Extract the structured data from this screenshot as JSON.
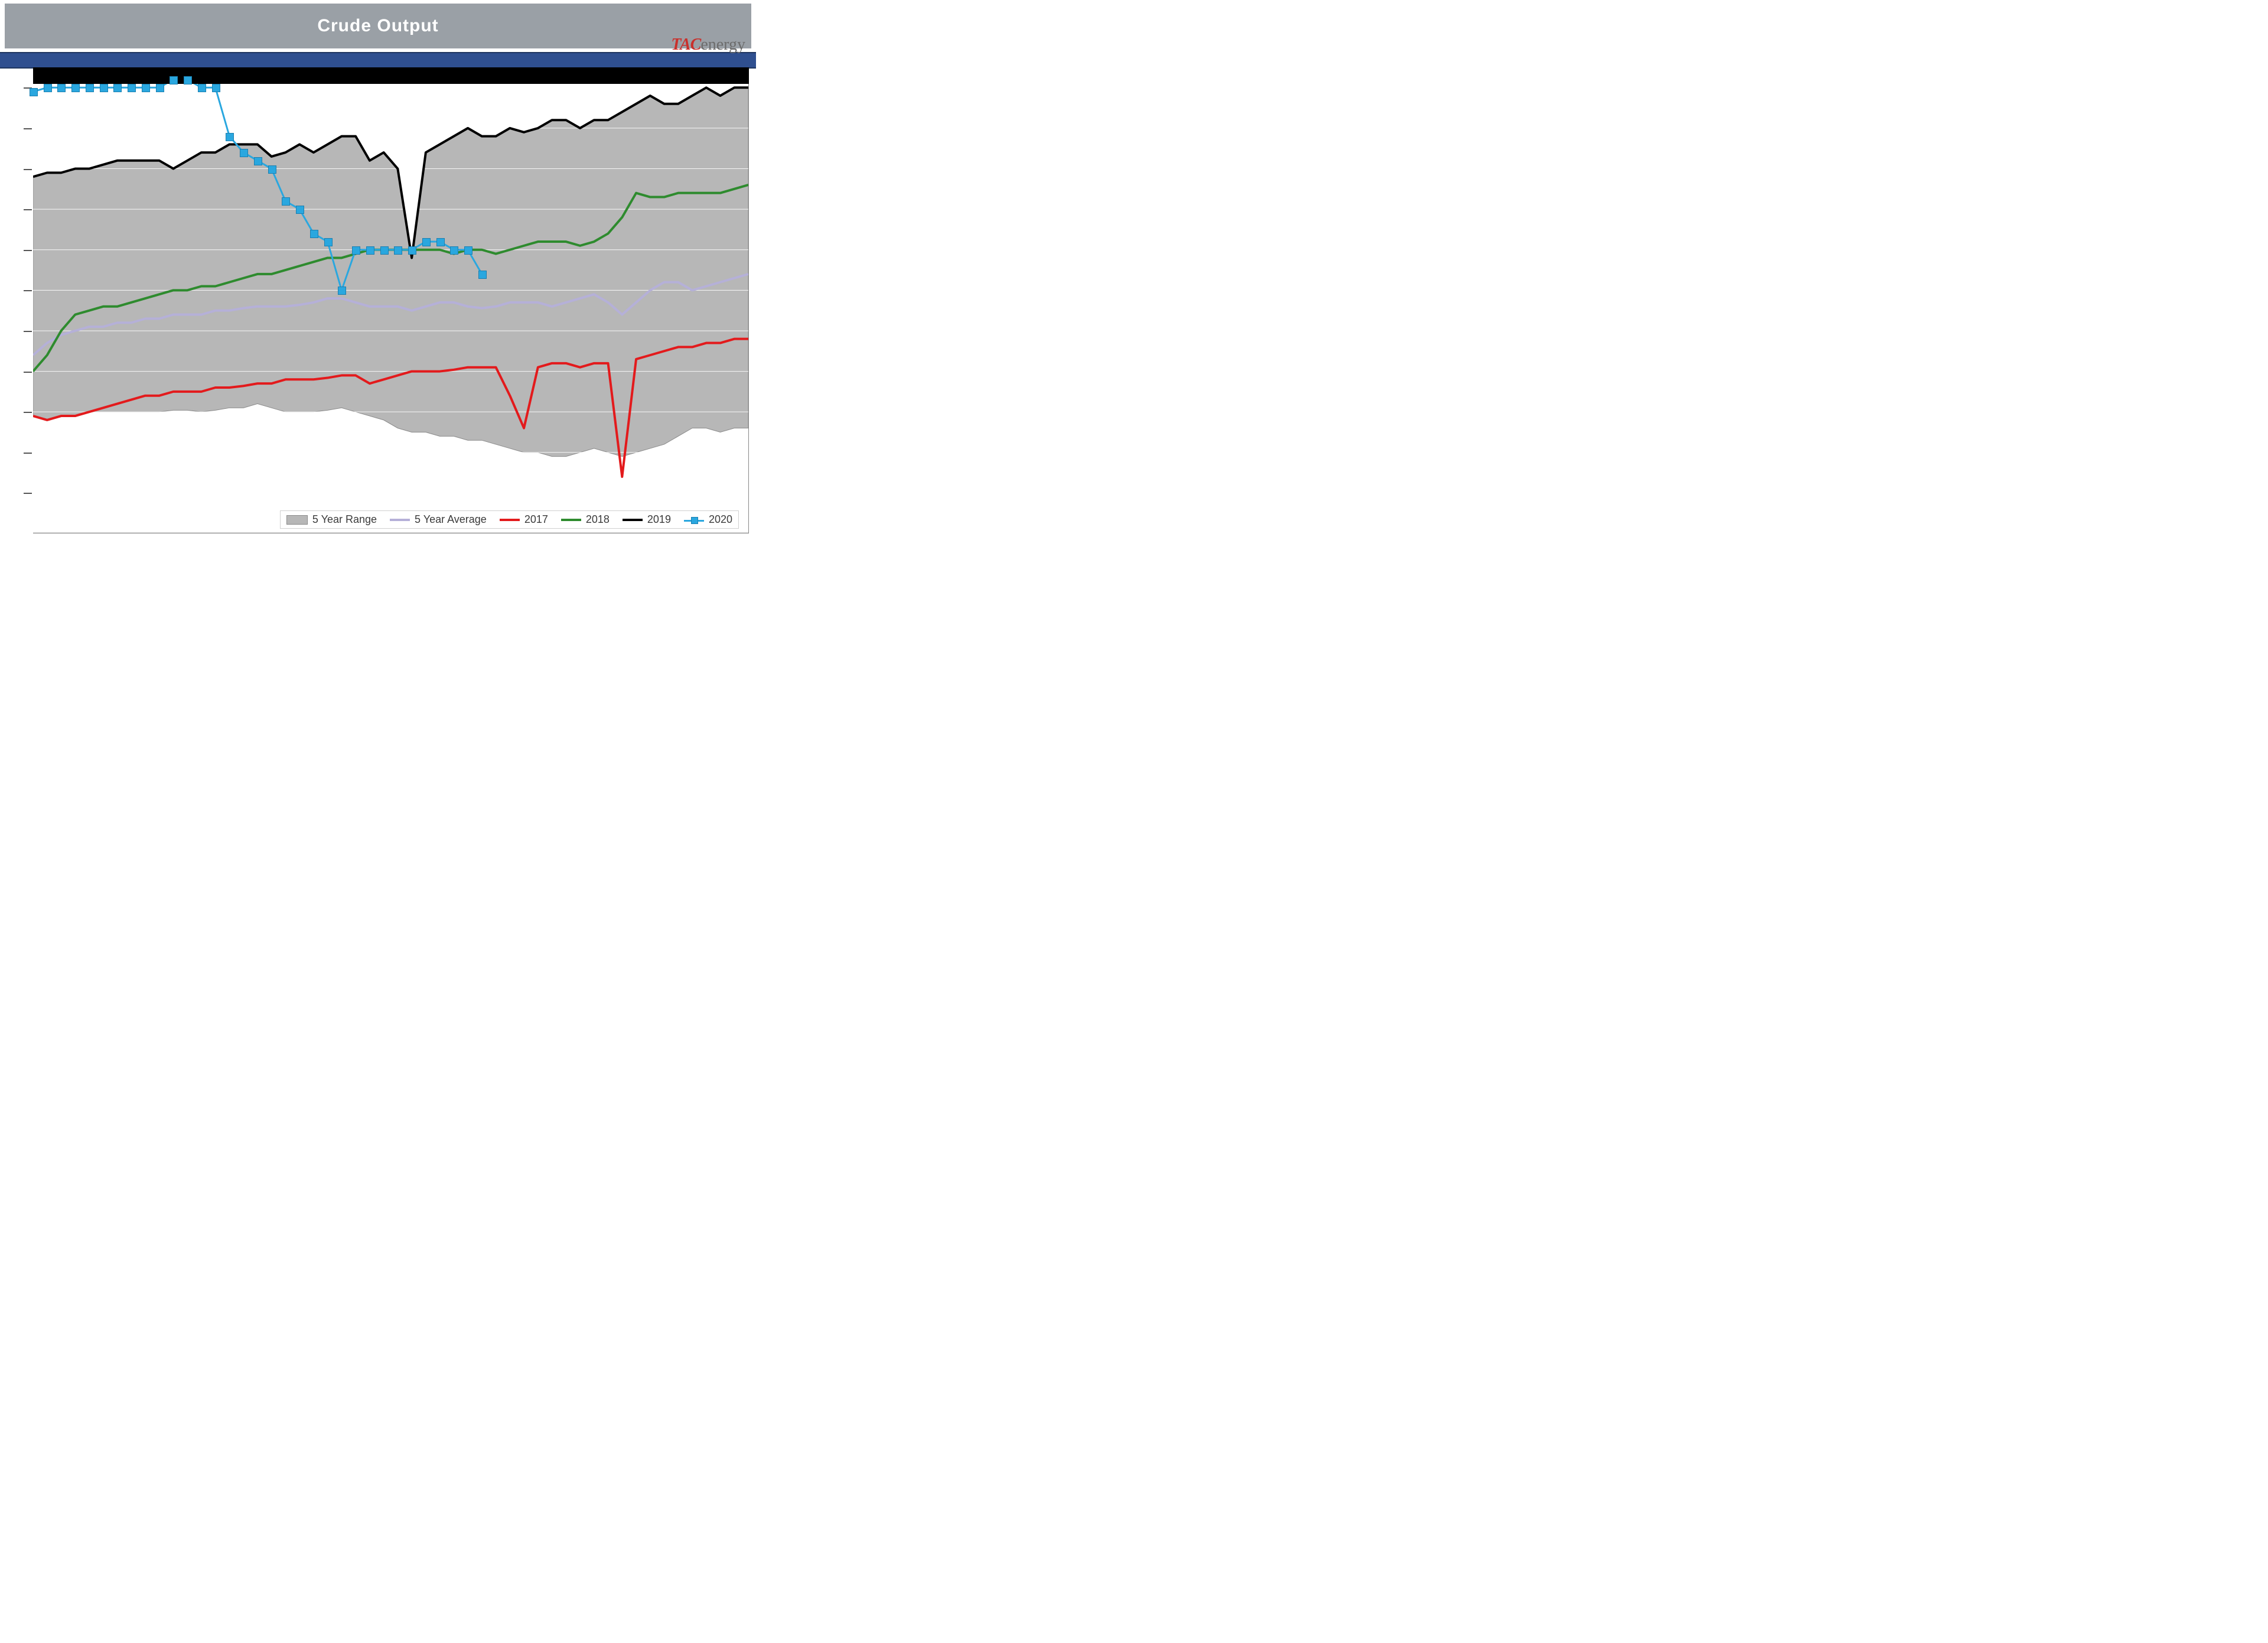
{
  "title": "Crude Output",
  "logo": {
    "tac": "TAC",
    "energy": "energy"
  },
  "chart": {
    "type": "line-with-band",
    "background_color": "#ffffff",
    "title_bar_color": "#9aa0a6",
    "title_color": "#ffffff",
    "title_fontsize": 30,
    "blue_band_color": "#2f4f8f",
    "black_top_strip_color": "#000000",
    "plot_border_color": "#888888",
    "gridline_color": "#ffffff",
    "x_count": 52,
    "xlim": [
      1,
      52
    ],
    "ylim": [
      7500,
      13250
    ],
    "y_gridlines": [
      8000,
      8500,
      9000,
      9500,
      10000,
      10500,
      11000,
      11500,
      12000,
      12500,
      13000
    ],
    "series": {
      "five_year_range": {
        "label": "5 Year Range",
        "fill_color": "#b7b7b7",
        "border_color": "#8a8a8a",
        "upper": [
          11900,
          11950,
          11950,
          12000,
          12000,
          12050,
          12100,
          12100,
          12100,
          12100,
          12000,
          12100,
          12200,
          12200,
          12300,
          12300,
          12300,
          12150,
          12200,
          12300,
          12200,
          12300,
          12400,
          12400,
          12100,
          12200,
          12000,
          10900,
          12200,
          12300,
          12400,
          12500,
          12400,
          12400,
          12500,
          12450,
          12500,
          12600,
          12600,
          12500,
          12600,
          12600,
          12700,
          12800,
          12900,
          12800,
          12800,
          12900,
          13000,
          12900,
          13000,
          13000
        ],
        "lower": [
          8950,
          8900,
          8950,
          8950,
          9000,
          9000,
          9000,
          9000,
          9000,
          9000,
          9020,
          9020,
          9000,
          9020,
          9050,
          9050,
          9100,
          9050,
          9000,
          9000,
          9000,
          9020,
          9050,
          9000,
          8950,
          8900,
          8800,
          8750,
          8750,
          8700,
          8700,
          8650,
          8650,
          8600,
          8550,
          8500,
          8500,
          8450,
          8450,
          8500,
          8550,
          8500,
          8450,
          8500,
          8550,
          8600,
          8700,
          8800,
          8800,
          8750,
          8800,
          8800
        ]
      },
      "five_year_average": {
        "label": "5 Year Average",
        "color": "#b5b0d8",
        "line_width": 4,
        "values": [
          9700,
          9850,
          9950,
          10000,
          10050,
          10050,
          10100,
          10100,
          10150,
          10150,
          10200,
          10200,
          10200,
          10250,
          10250,
          10280,
          10300,
          10300,
          10300,
          10320,
          10350,
          10400,
          10400,
          10350,
          10300,
          10300,
          10300,
          10250,
          10300,
          10350,
          10350,
          10300,
          10280,
          10300,
          10350,
          10350,
          10350,
          10300,
          10350,
          10400,
          10450,
          10350,
          10200,
          10350,
          10500,
          10600,
          10600,
          10500,
          10550,
          10600,
          10650,
          10700
        ]
      },
      "y2017": {
        "label": "2017",
        "color": "#e31a1c",
        "line_width": 4,
        "values": [
          8950,
          8900,
          8950,
          8950,
          9000,
          9050,
          9100,
          9150,
          9200,
          9200,
          9250,
          9250,
          9250,
          9300,
          9300,
          9320,
          9350,
          9350,
          9400,
          9400,
          9400,
          9420,
          9450,
          9450,
          9350,
          9400,
          9450,
          9500,
          9500,
          9500,
          9520,
          9550,
          9550,
          9550,
          9200,
          8800,
          9550,
          9600,
          9600,
          9550,
          9600,
          9600,
          8200,
          9650,
          9700,
          9750,
          9800,
          9800,
          9850,
          9850,
          9900,
          9900
        ]
      },
      "y2018": {
        "label": "2018",
        "color": "#2e8b2e",
        "line_width": 4,
        "values": [
          9500,
          9700,
          10000,
          10200,
          10250,
          10300,
          10300,
          10350,
          10400,
          10450,
          10500,
          10500,
          10550,
          10550,
          10600,
          10650,
          10700,
          10700,
          10750,
          10800,
          10850,
          10900,
          10900,
          10950,
          11000,
          11000,
          11000,
          11000,
          11000,
          11000,
          10950,
          11000,
          11000,
          10950,
          11000,
          11050,
          11100,
          11100,
          11100,
          11050,
          11100,
          11200,
          11400,
          11700,
          11650,
          11650,
          11700,
          11700,
          11700,
          11700,
          11750,
          11800
        ]
      },
      "y2019": {
        "label": "2019",
        "color": "#000000",
        "line_width": 4,
        "values": [
          11900,
          11950,
          11950,
          12000,
          12000,
          12050,
          12100,
          12100,
          12100,
          12100,
          12000,
          12100,
          12200,
          12200,
          12300,
          12300,
          12300,
          12150,
          12200,
          12300,
          12200,
          12300,
          12400,
          12400,
          12100,
          12200,
          12000,
          10900,
          12200,
          12300,
          12400,
          12500,
          12400,
          12400,
          12500,
          12450,
          12500,
          12600,
          12600,
          12500,
          12600,
          12600,
          12700,
          12800,
          12900,
          12800,
          12800,
          12900,
          13000,
          12900,
          13000,
          13000
        ]
      },
      "y2020": {
        "label": "2020",
        "color": "#2aa7df",
        "marker_border": "#1a7fb0",
        "marker": "square",
        "marker_size": 12,
        "line_width": 3,
        "values": [
          12950,
          13000,
          13000,
          13000,
          13000,
          13000,
          13000,
          13000,
          13000,
          13000,
          13100,
          13100,
          13000,
          13000,
          12400,
          12200,
          12100,
          12000,
          11600,
          11500,
          11200,
          11100,
          10500,
          11000,
          11000,
          11000,
          11000,
          11000,
          11100,
          11100,
          11000,
          11000,
          10700
        ]
      }
    },
    "legend": {
      "items": [
        "five_year_range",
        "five_year_average",
        "y2017",
        "y2018",
        "y2019",
        "y2020"
      ],
      "fontsize": 18,
      "bg": "#ffffff",
      "border": "#d0d0d0"
    }
  }
}
